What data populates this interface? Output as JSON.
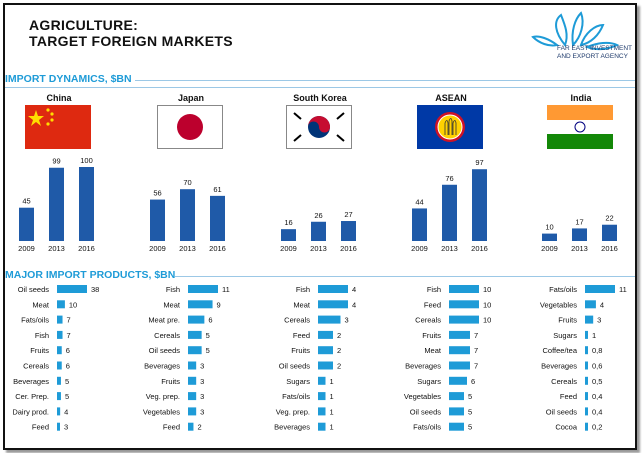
{
  "header": {
    "title_line1": "AGRICULTURE:",
    "title_line2": "TARGET FOREIGN MARKETS",
    "logo_line1": "FAR EAST INVESTMENT",
    "logo_line2": "AND EXPORT AGENCY"
  },
  "sections": {
    "dynamics": "IMPORT DYNAMICS, $BN",
    "products": "MAJOR IMPORT PRODUCTS, $BN"
  },
  "colors": {
    "bar_dark": "#1f5aa8",
    "bar_light": "#1e9bd7",
    "accent": "#1e9bd7"
  },
  "chart_data": [
    {
      "type": "bar",
      "title": "China",
      "categories": [
        "2009",
        "2013",
        "2016"
      ],
      "values": [
        45,
        99,
        100
      ]
    },
    {
      "type": "bar",
      "title": "Japan",
      "categories": [
        "2009",
        "2013",
        "2016"
      ],
      "values": [
        56,
        70,
        61
      ]
    },
    {
      "type": "bar",
      "title": "South Korea",
      "categories": [
        "2009",
        "2013",
        "2016"
      ],
      "values": [
        16,
        26,
        27
      ]
    },
    {
      "type": "bar",
      "title": "ASEAN",
      "categories": [
        "2009",
        "2013",
        "2016"
      ],
      "values": [
        44,
        76,
        97
      ]
    },
    {
      "type": "bar",
      "title": "India",
      "categories": [
        "2009",
        "2013",
        "2016"
      ],
      "values": [
        10,
        17,
        22
      ]
    },
    {
      "type": "bar",
      "orientation": "horizontal",
      "title": "China",
      "categories": [
        "Oil seeds",
        "Meat",
        "Fats/oils",
        "Fish",
        "Fruits",
        "Cereals",
        "Beverages",
        "Cer. Prep.",
        "Dairy prod.",
        "Feed"
      ],
      "values": [
        38,
        10,
        7,
        7,
        6,
        6,
        5,
        5,
        4,
        3
      ],
      "labels": [
        "38",
        "10",
        "7",
        "7",
        "6",
        "6",
        "5",
        "5",
        "4",
        "3"
      ]
    },
    {
      "type": "bar",
      "orientation": "horizontal",
      "title": "Japan",
      "categories": [
        "Fish",
        "Meat",
        "Meat pre.",
        "Cereals",
        "Oil seeds",
        "Beverages",
        "Fruits",
        "Veg. prep.",
        "Vegetables",
        "Feed"
      ],
      "values": [
        11,
        9,
        6,
        5,
        5,
        3,
        3,
        3,
        3,
        2
      ],
      "labels": [
        "11",
        "9",
        "6",
        "5",
        "5",
        "3",
        "3",
        "3",
        "3",
        "2"
      ]
    },
    {
      "type": "bar",
      "orientation": "horizontal",
      "title": "South Korea",
      "categories": [
        "Fish",
        "Meat",
        "Cereals",
        "Feed",
        "Fruits",
        "Oil seeds",
        "Sugars",
        "Fats/oils",
        "Veg. prep.",
        "Beverages"
      ],
      "values": [
        4,
        4,
        3,
        2,
        2,
        2,
        1,
        1,
        1,
        1
      ],
      "labels": [
        "4",
        "4",
        "3",
        "2",
        "2",
        "2",
        "1",
        "1",
        "1",
        "1"
      ]
    },
    {
      "type": "bar",
      "orientation": "horizontal",
      "title": "ASEAN",
      "categories": [
        "Fish",
        "Feed",
        "Cereals",
        "Fruits",
        "Meat",
        "Beverages",
        "Sugars",
        "Vegetables",
        "Oil seeds",
        "Fats/oils"
      ],
      "values": [
        10,
        10,
        10,
        7,
        7,
        7,
        6,
        5,
        5,
        5
      ],
      "labels": [
        "10",
        "10",
        "10",
        "7",
        "7",
        "7",
        "6",
        "5",
        "5",
        "5"
      ]
    },
    {
      "type": "bar",
      "orientation": "horizontal",
      "title": "India",
      "categories": [
        "Fats/oils",
        "Vegetables",
        "Fruits",
        "Sugars",
        "Coffee/tea",
        "Beverages",
        "Cereals",
        "Feed",
        "Oil seeds",
        "Cocoa"
      ],
      "values": [
        11,
        4,
        3,
        1,
        0.8,
        0.6,
        0.5,
        0.4,
        0.4,
        0.2
      ],
      "labels": [
        "11",
        "4",
        "3",
        "1",
        "0,8",
        "0,6",
        "0,5",
        "0,4",
        "0,4",
        "0,2"
      ]
    }
  ]
}
